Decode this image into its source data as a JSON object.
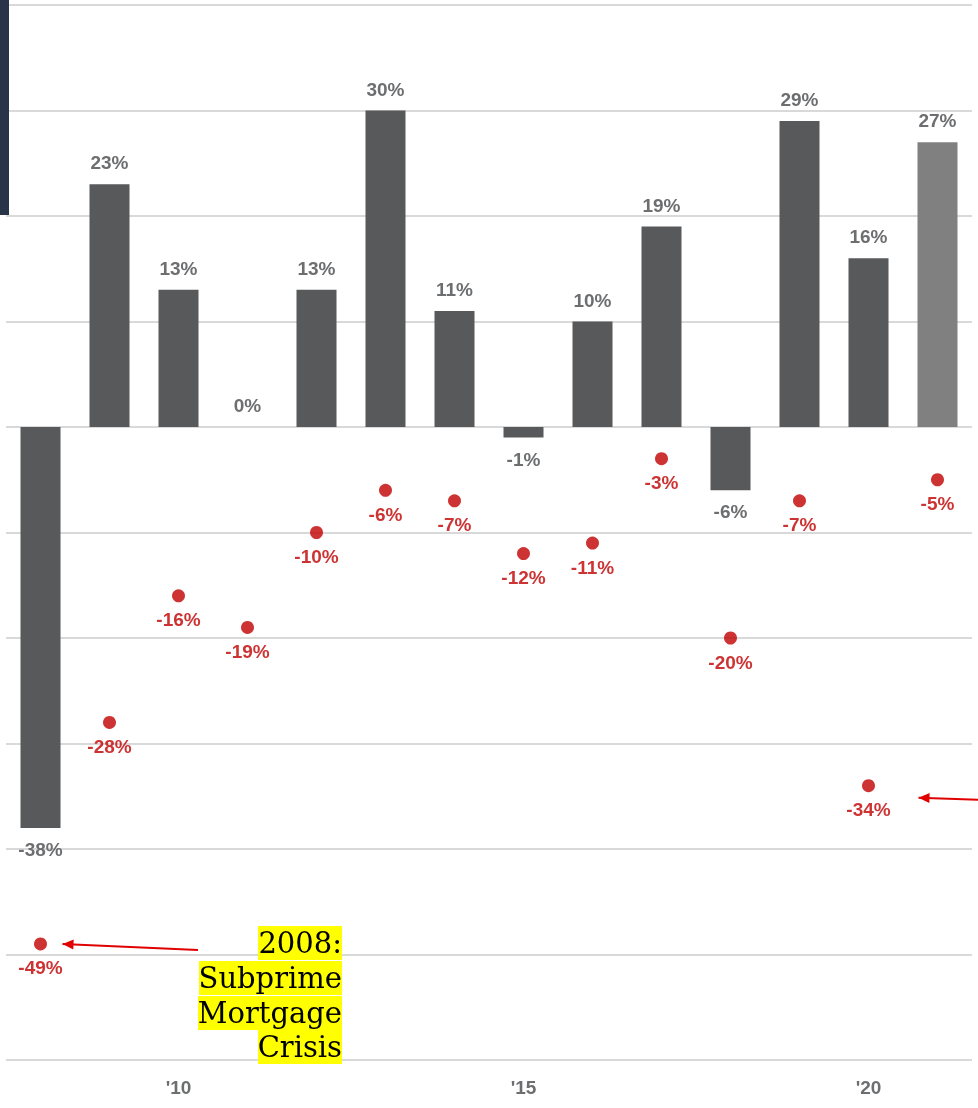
{
  "chart_data": {
    "type": "bar",
    "categories": [
      null,
      null,
      "'10",
      null,
      null,
      null,
      null,
      "'15",
      null,
      null,
      null,
      null,
      "'20",
      null
    ],
    "series": [
      {
        "colors": [
          "#58595b",
          "#58595b",
          "#58595b",
          "#58595b",
          "#58595b",
          "#58595b",
          "#58595b",
          "#58595b",
          "#58595b",
          "#58595b",
          "#58595b",
          "#58595b",
          "#58595b",
          "#808080"
        ],
        "values": [
          -38,
          23,
          13,
          0,
          13,
          30,
          11,
          -1,
          10,
          19,
          -6,
          29,
          16,
          27
        ],
        "value_labels": [
          "-38%",
          "23%",
          "13%",
          "0%",
          "13%",
          "30%",
          "11%",
          "-1%",
          "10%",
          "19%",
          "-6%",
          "29%",
          "16%",
          "27%"
        ]
      },
      {
        "type": "scatter",
        "color": "#c00000",
        "values": [
          -49,
          -28,
          -16,
          -19,
          -10,
          -6,
          -7,
          -12,
          -11,
          -3,
          -20,
          -7,
          -34,
          -5
        ],
        "value_labels": [
          "-49%",
          "-28%",
          "-16%",
          "-19%",
          "-10%",
          "-6%",
          "-7%",
          "-12%",
          "-11%",
          "-3%",
          "-20%",
          "-7%",
          "-34%",
          "-5%"
        ]
      }
    ],
    "ylim": [
      -60,
      40
    ],
    "yticks": [
      {
        "value": -60,
        "label": null
      },
      {
        "value": -50,
        "label": null
      },
      {
        "value": -40,
        "label": null
      },
      {
        "value": -30,
        "label": null
      },
      {
        "value": -20,
        "label": null
      },
      {
        "value": -10,
        "label": null
      },
      {
        "value": 0,
        "label": null
      },
      {
        "value": 10,
        "label": null
      },
      {
        "value": 20,
        "label": null
      },
      {
        "value": 30,
        "label": null
      },
      {
        "value": 40,
        "label": null
      }
    ],
    "tick_labels": "x",
    "grid": "y",
    "marker": "circle",
    "annotations": [
      "2008: Subprime Mortgage Crisis"
    ]
  }
}
